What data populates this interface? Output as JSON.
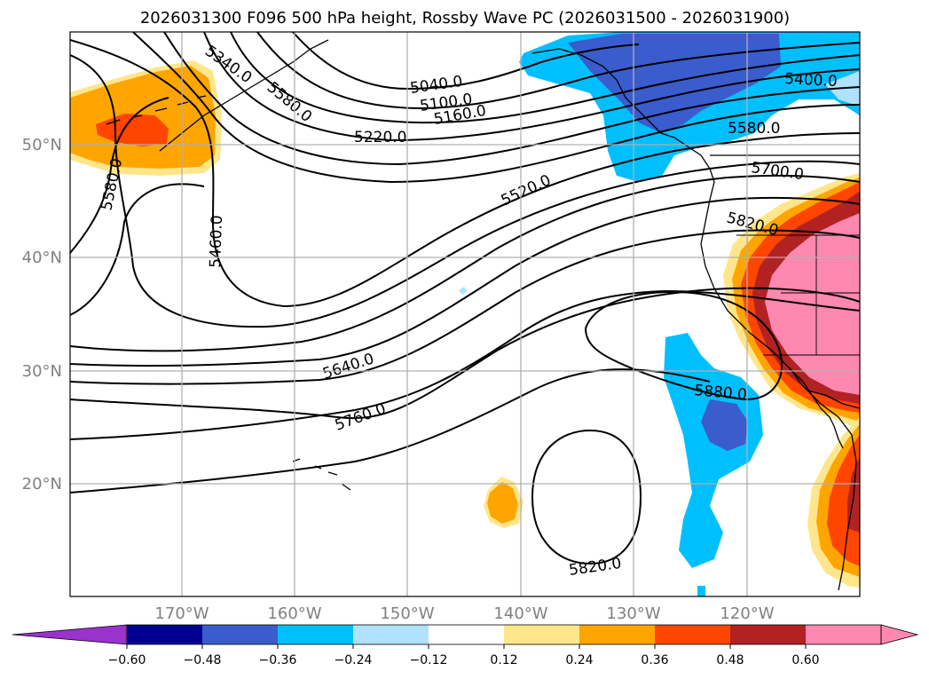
{
  "title": "2026031300 F096 500 hPa height, Rossby Wave PC (2026031500 - 2026031900)",
  "map": {
    "lon_range": [
      -180,
      -110
    ],
    "lat_range": [
      10,
      60
    ],
    "lon_ticks": [
      "170°W",
      "160°W",
      "150°W",
      "140°W",
      "130°W",
      "120°W"
    ],
    "lat_ticks": [
      "50°N",
      "40°N",
      "30°N",
      "20°N"
    ],
    "contour_labels": [
      "5340.0",
      "5580.0",
      "5040.0",
      "5100.0",
      "5160.0",
      "5220.0",
      "5400.0",
      "5580.0",
      "5700.0",
      "5820.0",
      "5520.0",
      "5580.0",
      "5460.0",
      "5640.0",
      "5760.0",
      "5880.0",
      "5820.0"
    ]
  },
  "colorbar": {
    "ticks": [
      "−0.60",
      "−0.48",
      "−0.36",
      "−0.24",
      "−0.12",
      "0.12",
      "0.24",
      "0.36",
      "0.48",
      "0.60"
    ],
    "colors": [
      "#9933cc",
      "#000090",
      "#3a5ccc",
      "#00bfff",
      "#b0e2ff",
      "#ffffff",
      "#ffe68c",
      "#ffa500",
      "#ff4500",
      "#b22222",
      "#ff88b0",
      "#ff88b0"
    ]
  },
  "colors": {
    "gridline": "#b0b0b0",
    "contour": "#000000",
    "axis_label": "#808080"
  }
}
